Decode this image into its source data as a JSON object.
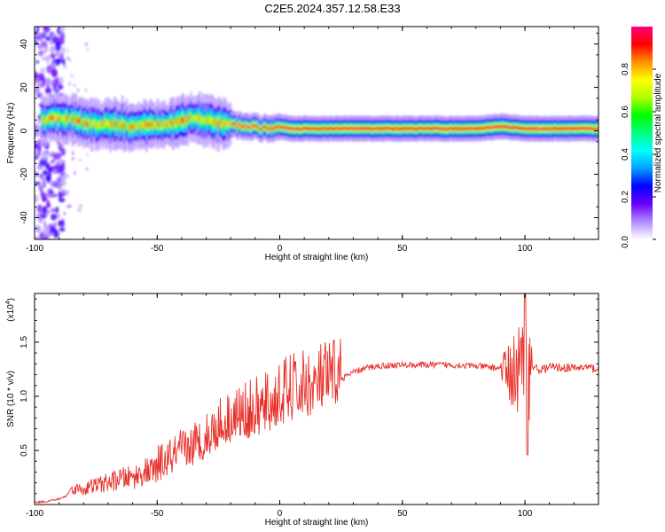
{
  "title": "C2E5.2024.357.12.58.E33",
  "chart_data": [
    {
      "type": "heatmap",
      "xlabel": "Height of straight line (km)",
      "ylabel": "Frequency (Hz)",
      "xlim": [
        -100,
        130
      ],
      "ylim": [
        -50,
        48
      ],
      "xticks": [
        -100,
        -50,
        0,
        50,
        100
      ],
      "yticks": [
        -40,
        -20,
        0,
        20,
        40
      ],
      "colorbar": {
        "label": "Normalized spectral amplitude",
        "range": [
          0,
          1
        ],
        "ticks": [
          "0.0",
          "0.2",
          "0.4",
          "0.6",
          "0.8"
        ],
        "colors": [
          "#ffffff",
          "#b08cff",
          "#6a00ff",
          "#0000ff",
          "#00a0ff",
          "#00ffff",
          "#00ff80",
          "#00ff00",
          "#b0ff00",
          "#ffff00",
          "#ff9000",
          "#ff0000",
          "#ff0080"
        ]
      },
      "ridge": {
        "x": [
          -95,
          -90,
          -85,
          -80,
          -75,
          -70,
          -65,
          -60,
          -55,
          -50,
          -45,
          -40,
          -35,
          -30,
          -25,
          -20,
          -15,
          -10,
          -5,
          0,
          5,
          10,
          20,
          40,
          60,
          80,
          90,
          100,
          110,
          120,
          130
        ],
        "frequency": [
          5,
          6,
          5,
          4,
          3,
          3,
          3,
          2,
          3,
          2,
          3,
          4,
          6,
          5,
          4,
          3,
          2,
          2,
          1,
          2,
          1,
          1,
          1,
          1,
          1,
          1,
          2,
          1,
          1,
          1,
          1
        ]
      }
    },
    {
      "type": "line",
      "xlabel": "Height of straight line (km)",
      "ylabel": "SNR (10 * v/v)",
      "multiplier": "(x10",
      "multiplier_exp": "4",
      "multiplier_close": ")",
      "xlim": [
        -100,
        130
      ],
      "ylim": [
        0,
        1.95
      ],
      "xticks": [
        -100,
        -50,
        0,
        50,
        100
      ],
      "yticks": [
        "0.5",
        "1.0",
        "1.5"
      ],
      "color": "#e8302a",
      "x": [
        -100,
        -95,
        -90,
        -87,
        -85,
        -80,
        -75,
        -70,
        -65,
        -60,
        -55,
        -50,
        -45,
        -40,
        -35,
        -30,
        -25,
        -20,
        -15,
        -10,
        -5,
        0,
        5,
        10,
        15,
        20,
        25,
        30,
        35,
        40,
        50,
        60,
        70,
        80,
        90,
        95,
        98,
        100,
        103,
        106,
        110,
        120,
        125,
        130
      ],
      "y": [
        0.02,
        0.03,
        0.05,
        0.08,
        0.15,
        0.14,
        0.18,
        0.2,
        0.24,
        0.25,
        0.3,
        0.32,
        0.38,
        0.45,
        0.5,
        0.58,
        0.68,
        0.75,
        0.78,
        0.8,
        0.85,
        0.93,
        0.98,
        1.02,
        1.05,
        1.1,
        1.16,
        1.22,
        1.26,
        1.28,
        1.29,
        1.29,
        1.29,
        1.28,
        1.26,
        1.22,
        1.2,
        1.1,
        1.28,
        1.24,
        1.27,
        1.26,
        1.27,
        1.25
      ]
    }
  ]
}
